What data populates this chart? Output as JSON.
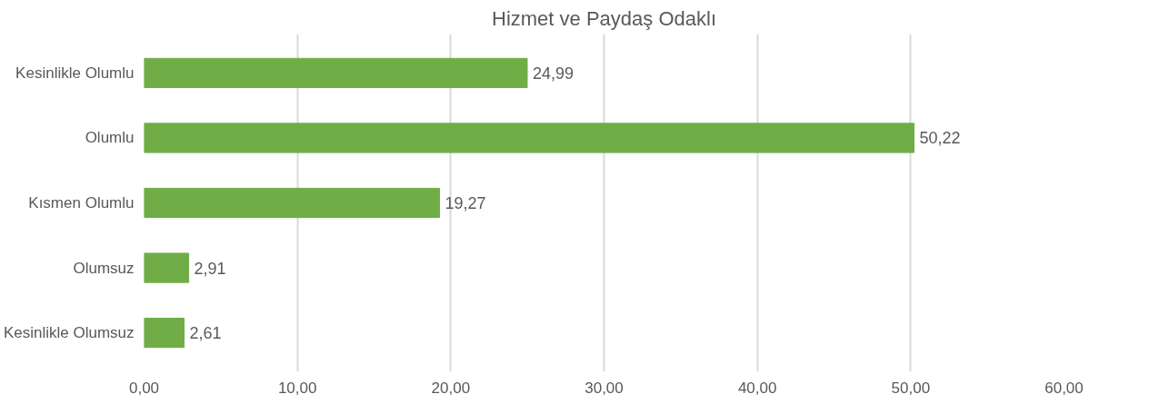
{
  "chart_data": {
    "type": "bar",
    "orientation": "horizontal",
    "title": "Hizmet ve Paydaş Odaklı",
    "categories": [
      "Kesinlikle Olumlu",
      "Olumlu",
      "Kısmen Olumlu",
      "Olumsuz",
      "Kesinlikle Olumsuz"
    ],
    "values": [
      24.99,
      50.22,
      19.27,
      2.91,
      2.61
    ],
    "value_labels": [
      "24,99",
      "50,22",
      "19,27",
      "2,91",
      "2,61"
    ],
    "color": "#70ad47",
    "xlim": [
      0,
      60
    ],
    "xticks": [
      {
        "value": 0,
        "label": "0,00"
      },
      {
        "value": 10,
        "label": "10,00"
      },
      {
        "value": 20,
        "label": "20,00"
      },
      {
        "value": 30,
        "label": "30,00"
      },
      {
        "value": 40,
        "label": "40,00"
      },
      {
        "value": 50,
        "label": "50,00"
      },
      {
        "value": 60,
        "label": "60,00"
      }
    ],
    "grid": "x"
  }
}
